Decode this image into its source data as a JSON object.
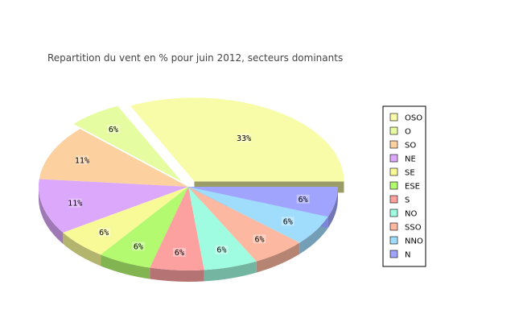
{
  "chart_data": {
    "type": "pie",
    "style": "3d-exploded",
    "title": "Repartition du vent en % pour juin 2012, secteurs dominants",
    "label_suffix": "%",
    "legend_position": "right",
    "slices": [
      {
        "label": "OSO",
        "value": 33,
        "color": "#f8fca8",
        "exploded": true
      },
      {
        "label": "O",
        "value": 6,
        "color": "#e6fca0",
        "exploded": true
      },
      {
        "label": "SO",
        "value": 11,
        "color": "#fdd0a0"
      },
      {
        "label": "NE",
        "value": 11,
        "color": "#dca8fc"
      },
      {
        "label": "SE",
        "value": 6,
        "color": "#f8fa98"
      },
      {
        "label": "ESE",
        "value": 6,
        "color": "#b4fa70"
      },
      {
        "label": "S",
        "value": 6,
        "color": "#fca0a0"
      },
      {
        "label": "NO",
        "value": 6,
        "color": "#a0fce0"
      },
      {
        "label": "SSO",
        "value": 6,
        "color": "#fcb8a0"
      },
      {
        "label": "NNO",
        "value": 6,
        "color": "#a0dcfc"
      },
      {
        "label": "N",
        "value": 6,
        "color": "#a0a4fc"
      }
    ]
  }
}
